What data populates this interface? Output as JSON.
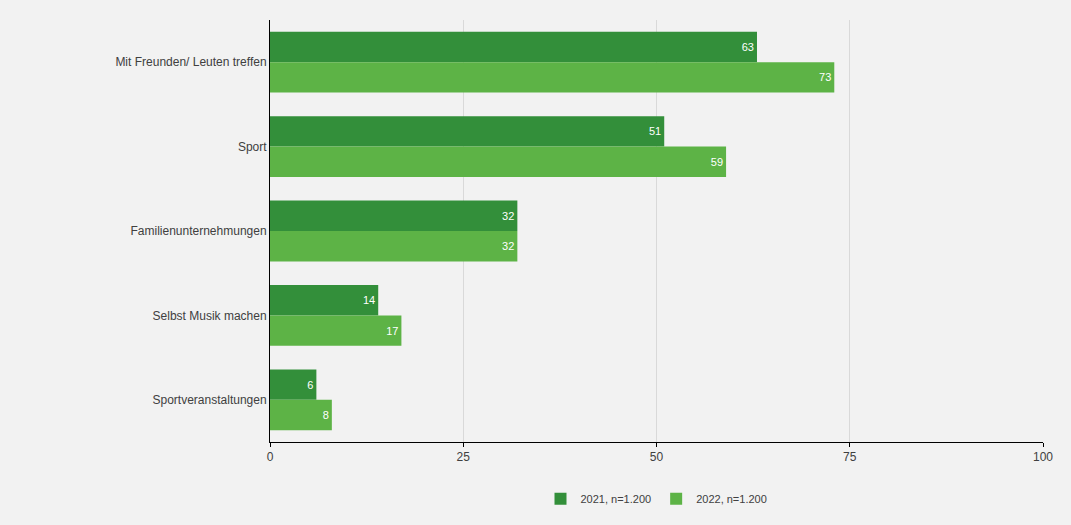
{
  "chart_data": {
    "type": "bar",
    "orientation": "horizontal",
    "categories": [
      "Mit Freunden/ Leuten treffen",
      "Sport",
      "Familienunternehmungen",
      "Selbst Musik machen",
      "Sportveranstaltungen"
    ],
    "series": [
      {
        "name": "2021, n=1.200",
        "color": "#338f3a",
        "values": [
          63,
          51,
          32,
          14,
          6
        ]
      },
      {
        "name": "2022, n=1.200",
        "color": "#5db346",
        "values": [
          73,
          59,
          32,
          17,
          8
        ]
      }
    ],
    "xlim": [
      0,
      100
    ],
    "xticks": [
      0,
      25,
      50,
      75,
      100
    ],
    "grid": true,
    "data_labels": true,
    "legend": "bottom"
  }
}
